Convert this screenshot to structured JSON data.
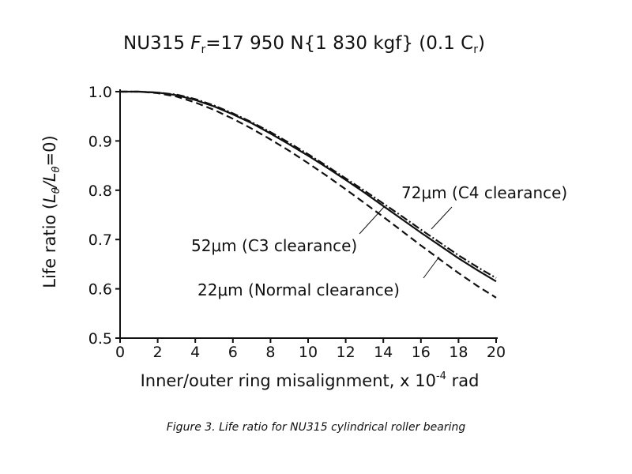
{
  "chart_data": {
    "type": "line",
    "title_parts": [
      "NU315 ",
      "F",
      "r",
      "=17 950 N{1 830 kgf} (0.1 C",
      "r",
      ")"
    ],
    "xlabel_parts": [
      "Inner/outer ring misalignment, x 10",
      "-4",
      " rad"
    ],
    "ylabel_parts": [
      "Life ratio (",
      "L",
      "θ",
      "/",
      "L",
      "θ",
      "=0)"
    ],
    "xlim": [
      0,
      20
    ],
    "ylim": [
      0.5,
      1.0
    ],
    "x_ticks": [
      "0",
      "2",
      "4",
      "6",
      "8",
      "10",
      "12",
      "14",
      "16",
      "18",
      "20"
    ],
    "y_ticks": [
      "1.0",
      "0.9",
      "0.8",
      "0.7",
      "0.6",
      "0.5"
    ],
    "grid": false,
    "series": [
      {
        "name": "22μm (Normal clearance)",
        "style": "dashed",
        "x": [
          0,
          1,
          2,
          3,
          4,
          5,
          6,
          7,
          8,
          9,
          10,
          11,
          12,
          13,
          14,
          15,
          16,
          17,
          18,
          19,
          20
        ],
        "y": [
          1.0,
          1.0,
          0.997,
          0.99,
          0.978,
          0.963,
          0.945,
          0.925,
          0.903,
          0.88,
          0.855,
          0.829,
          0.802,
          0.774,
          0.746,
          0.717,
          0.688,
          0.66,
          0.632,
          0.606,
          0.582
        ]
      },
      {
        "name": "52μm (C3 clearance)",
        "style": "solid",
        "x": [
          0,
          1,
          2,
          3,
          4,
          5,
          6,
          7,
          8,
          9,
          10,
          11,
          12,
          13,
          14,
          15,
          16,
          17,
          18,
          19,
          20
        ],
        "y": [
          1.0,
          1.0,
          0.998,
          0.993,
          0.983,
          0.97,
          0.954,
          0.936,
          0.915,
          0.893,
          0.87,
          0.846,
          0.821,
          0.795,
          0.768,
          0.741,
          0.714,
          0.688,
          0.662,
          0.638,
          0.615
        ]
      },
      {
        "name": "72μm (C4 clearance)",
        "style": "dash-dot",
        "x": [
          0,
          1,
          2,
          3,
          4,
          5,
          6,
          7,
          8,
          9,
          10,
          11,
          12,
          13,
          14,
          15,
          16,
          17,
          18,
          19,
          20
        ],
        "y": [
          1.0,
          1.0,
          0.998,
          0.994,
          0.985,
          0.972,
          0.956,
          0.938,
          0.918,
          0.896,
          0.873,
          0.849,
          0.824,
          0.799,
          0.773,
          0.747,
          0.72,
          0.694,
          0.668,
          0.644,
          0.622
        ]
      }
    ],
    "annotations": [
      {
        "text": "72μm (C4 clearance)",
        "points_to_series": 2,
        "at_x": 16.8
      },
      {
        "text": "52μm (C3 clearance)",
        "points_to_series": 1,
        "at_x": 13.8
      },
      {
        "text": "22μm (Normal clearance)",
        "points_to_series": 0,
        "at_x": 16.4
      }
    ]
  },
  "caption": "Figure 3. Life ratio for NU315 cylindrical roller bearing"
}
